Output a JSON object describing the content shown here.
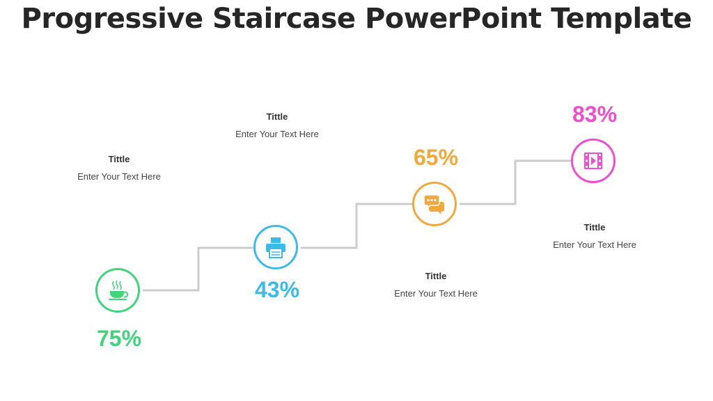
{
  "title": "Progressive Staircase PowerPoint Template",
  "steps": [
    {
      "percent": "75%",
      "label_title": "Tittle",
      "label_text": "Enter Your Text Here",
      "color": "#3ed57c",
      "icon": "coffee-cup-icon"
    },
    {
      "percent": "43%",
      "label_title": "Tittle",
      "label_text": "Enter Your Text Here",
      "color": "#3bbbe8",
      "icon": "printer-icon"
    },
    {
      "percent": "65%",
      "label_title": "Tittle",
      "label_text": "Enter Your Text Here",
      "color": "#f0a93a",
      "icon": "chat-bubbles-icon"
    },
    {
      "percent": "83%",
      "label_title": "Tittle",
      "label_text": "Enter Your Text Here",
      "color": "#ee4fcf",
      "icon": "video-play-icon"
    }
  ],
  "connector_color": "#cccccc"
}
